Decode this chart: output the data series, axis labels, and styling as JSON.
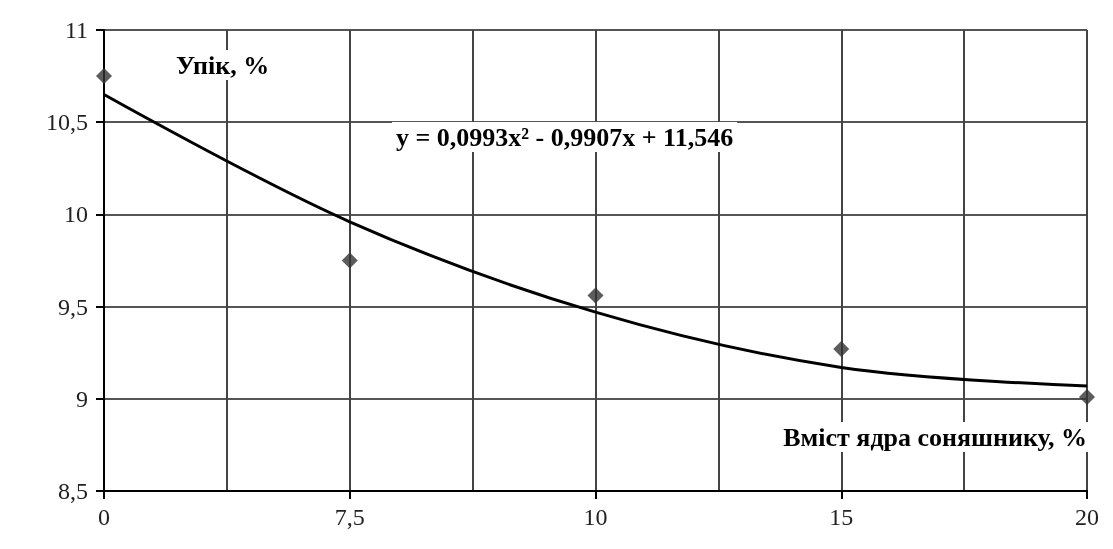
{
  "chart_data": {
    "type": "scatter",
    "ylabel": "Упік, %",
    "xlabel": "Вміст ядра соняшнику, %",
    "annotations": [
      "y = 0,0993x² - 0,9907x + 11,546"
    ],
    "categories": [
      "0",
      "7,5",
      "10",
      "15",
      "20"
    ],
    "series": [
      {
        "color": "#333333",
        "marker": "diamond",
        "values": [
          10.75,
          9.75,
          9.56,
          9.27,
          9.01
        ]
      },
      {
        "type": "line",
        "color": "#000000",
        "marker": "none",
        "line_style": "solid",
        "values": [
          10.65,
          9.96,
          9.47,
          9.17,
          9.07
        ]
      }
    ],
    "ylim": [
      8.5,
      11
    ],
    "yticks": [
      {
        "value": 8.5,
        "label": "8,5"
      },
      9,
      {
        "value": 9.5,
        "label": "9,5"
      },
      10,
      {
        "value": 10.5,
        "label": "10,5"
      },
      11
    ],
    "grid": true
  }
}
